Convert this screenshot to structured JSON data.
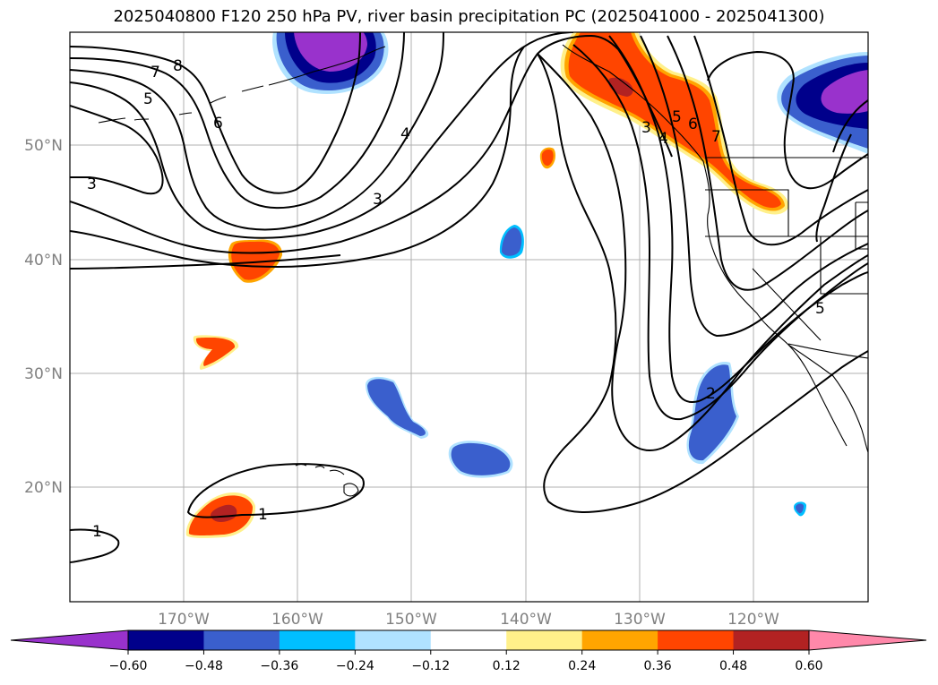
{
  "title": "2025040800 F120 250 hPa PV, river basin precipitation PC (2025041000 - 2025041300)",
  "map": {
    "lat_labels": [
      "50°N",
      "40°N",
      "30°N",
      "20°N"
    ],
    "lon_labels": [
      "170°W",
      "160°W",
      "150°W",
      "140°W",
      "130°W",
      "120°W"
    ],
    "contour_labels": [
      "8",
      "7",
      "6",
      "5",
      "4",
      "3",
      "3",
      "2",
      "1",
      "1",
      "3",
      "4",
      "5",
      "6",
      "7",
      "5"
    ]
  },
  "colorbar": {
    "ticks": [
      "−0.60",
      "−0.48",
      "−0.36",
      "−0.24",
      "−0.12",
      "0.12",
      "0.24",
      "0.36",
      "0.48",
      "0.60"
    ],
    "colors": [
      "#9932cc",
      "#00008b",
      "#3a5fcd",
      "#00bfff",
      "#b0e2ff",
      "#ffffff",
      "#fff08a",
      "#ffa500",
      "#ff4500",
      "#b22222",
      "#ff88aa"
    ]
  }
}
